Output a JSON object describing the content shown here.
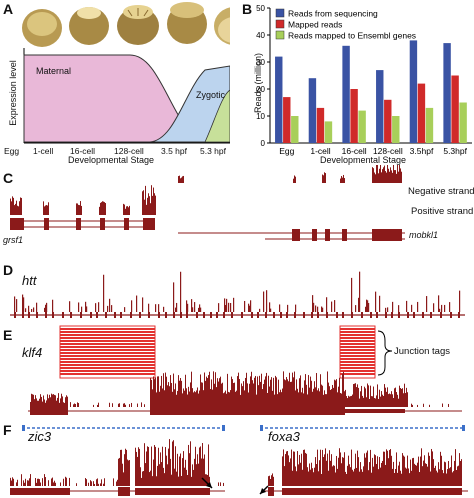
{
  "panels": {
    "A": {
      "letter": "A",
      "ylabel": "Expression level",
      "xlabel": "Developmental Stage",
      "region_labels": {
        "maternal": "Maternal",
        "zygotic": "Zygotic"
      },
      "stages": [
        "Egg",
        "1-cell",
        "16-cell",
        "128-cell",
        "3.5 hpf",
        "5.3 hpf"
      ]
    },
    "B": {
      "letter": "B",
      "chart_data": {
        "type": "bar",
        "categories": [
          "Egg",
          "1-cell",
          "16-cell",
          "128-cell",
          "3.5hpf",
          "5.3hpf"
        ],
        "series": [
          {
            "name": "Reads from sequencing",
            "color": "#3a53a4",
            "values": [
              32,
              24,
              36,
              27,
              38,
              37
            ]
          },
          {
            "name": "Mapped reads",
            "color": "#d02a2a",
            "values": [
              17,
              13,
              20,
              16,
              22,
              25
            ]
          },
          {
            "name": "Reads mapped to Ensembl genes",
            "color": "#a8cf5a",
            "values": [
              10,
              8,
              12,
              10,
              13,
              15
            ]
          }
        ],
        "ylabel": "Reads (million)",
        "xlabel": "Developmental Stage",
        "ylim": [
          0,
          50
        ],
        "yticks": [
          0,
          10,
          20,
          30,
          40,
          50
        ],
        "legend": "top-left"
      }
    },
    "C": {
      "letter": "C",
      "negative_strand": "Negative strand",
      "positive_strand": "Positive strand",
      "gene_left": "grsf1",
      "gene_right": "mobkl1"
    },
    "D": {
      "letter": "D",
      "gene": "htt"
    },
    "E": {
      "letter": "E",
      "gene": "klf4",
      "junction_label": "Junction tags"
    },
    "F": {
      "letter": "F",
      "gene_left": "zic3",
      "gene_right": "foxa3"
    }
  },
  "colors": {
    "track": "#8b1a1a",
    "junction": "#e3312f",
    "blue_gene": "#3b6fc9"
  }
}
